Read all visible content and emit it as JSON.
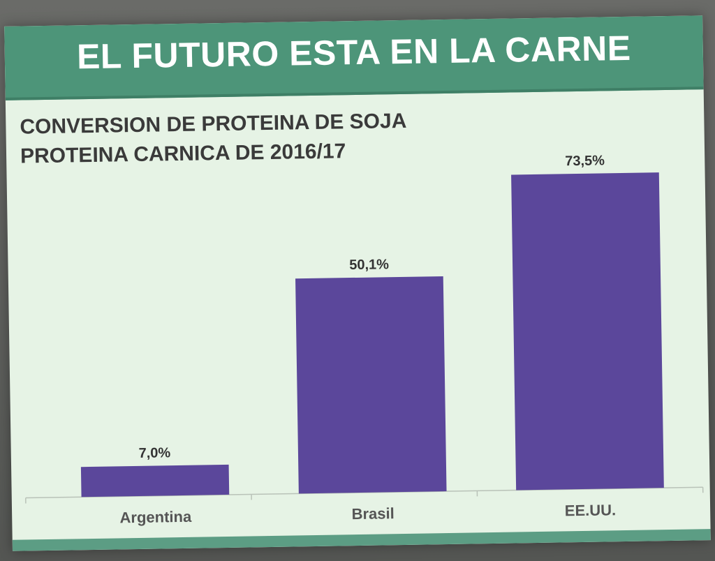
{
  "header": {
    "title": "EL FUTURO ESTA EN LA CARNE"
  },
  "chart_data": {
    "type": "bar",
    "title_lines": [
      "CONVERSION DE PROTEINA DE SOJA",
      "PROTEINA CARNICA DE 2016/17"
    ],
    "categories": [
      "Argentina",
      "Brasil",
      "EE.UU."
    ],
    "values": [
      7.0,
      50.1,
      73.5
    ],
    "value_labels": [
      "7,0%",
      "50,1%",
      "73,5%"
    ],
    "unit": "%",
    "ylim": [
      0,
      100
    ],
    "grid": false,
    "legend": "none",
    "bar_color": "#5b479b"
  },
  "colors": {
    "banner": "#4d9579",
    "slide_background": "#e6f3e5",
    "bar": "#5b479b"
  }
}
